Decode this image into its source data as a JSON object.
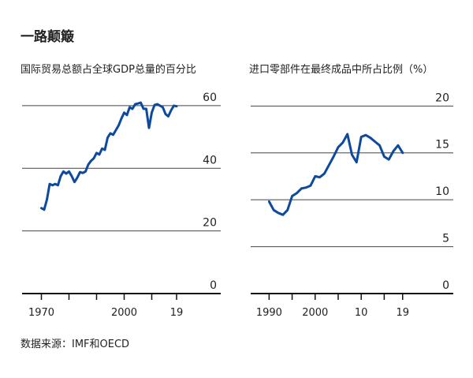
{
  "title": "一路颠簸",
  "source": "数据来源：IMF和OECD",
  "chart_data": [
    {
      "type": "line",
      "title": "国际贸易总额占全球GDP总量的百分比",
      "x": [
        1970,
        1971,
        1972,
        1973,
        1974,
        1975,
        1976,
        1977,
        1978,
        1979,
        1980,
        1981,
        1982,
        1983,
        1984,
        1985,
        1986,
        1987,
        1988,
        1989,
        1990,
        1991,
        1992,
        1993,
        1994,
        1995,
        1996,
        1997,
        1998,
        1999,
        2000,
        2001,
        2002,
        2003,
        2004,
        2005,
        2006,
        2007,
        2008,
        2009,
        2010,
        2011,
        2012,
        2013,
        2014,
        2015,
        2016,
        2017,
        2018,
        2019
      ],
      "series": [
        {
          "color": "#0d4a9e",
          "values": [
            27.3,
            26.8,
            30,
            35,
            34.6,
            35,
            34.6,
            37.5,
            39,
            38.3,
            39,
            37.5,
            35.6,
            37,
            38.8,
            38.5,
            39,
            41.2,
            42.4,
            43.2,
            44.9,
            44.4,
            46.3,
            45.9,
            49.8,
            51.2,
            50.7,
            52.2,
            53.7,
            55.9,
            57.8,
            57,
            59.5,
            59,
            60.5,
            60.7,
            61,
            59,
            59,
            52.9,
            57.8,
            60.2,
            60.5,
            60,
            59.5,
            57.3,
            56.6,
            58.5,
            60,
            59.8
          ]
        }
      ],
      "xlim": [
        1963,
        2035
      ],
      "xticks": [
        1970,
        2000,
        {
          "value": 2019,
          "label": "19"
        }
      ],
      "xticks_minor": [
        1980,
        1990,
        2010
      ],
      "ylim": [
        0,
        62
      ],
      "yticks": [
        0,
        20,
        40,
        60
      ],
      "grid": true
    },
    {
      "type": "line",
      "title": "进口零部件在最终成品中所占比例（%）",
      "x": [
        1990,
        1991,
        1992,
        1993,
        1994,
        1995,
        1996,
        1997,
        1998,
        1999,
        2000,
        2001,
        2002,
        2003,
        2004,
        2005,
        2006,
        2007,
        2008,
        2009,
        2010,
        2011,
        2012,
        2013,
        2014,
        2015,
        2016,
        2017,
        2018,
        2019
      ],
      "series": [
        {
          "color": "#0d4a9e",
          "values": [
            9.8,
            8.9,
            8.6,
            8.4,
            8.9,
            10.4,
            10.7,
            11.2,
            11.3,
            11.5,
            12.5,
            12.4,
            12.8,
            13.7,
            14.6,
            15.6,
            16.1,
            17,
            14.8,
            14,
            16.7,
            16.9,
            16.6,
            16.2,
            15.8,
            14.6,
            14.3,
            15.2,
            15.8,
            15
          ]
        }
      ],
      "xlim": [
        1986,
        2030
      ],
      "xticks": [
        1990,
        2000,
        {
          "value": 2010,
          "label": "10"
        },
        {
          "value": 2019,
          "label": "19"
        }
      ],
      "xticks_minor": [
        1995,
        2005,
        2015
      ],
      "ylim": [
        0,
        20.7
      ],
      "yticks": [
        0,
        5,
        10,
        15,
        20
      ],
      "grid": true
    }
  ]
}
